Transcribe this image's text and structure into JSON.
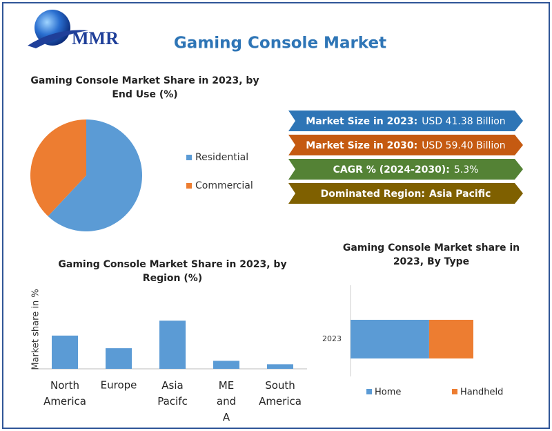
{
  "header": {
    "title": "Gaming Console Market",
    "logo": "MMR"
  },
  "highlights": [
    {
      "label": "Market Size in 2023:",
      "value": "USD 41.38 Billion",
      "color": "#2e75b6"
    },
    {
      "label": "Market Size in 2030:",
      "value": "USD 59.40 Billion",
      "color": "#c55a11"
    },
    {
      "label": "CAGR % (2024-2030):",
      "value": "5.3%",
      "color": "#548235"
    },
    {
      "label": "Dominated Region:",
      "value": "Asia Pacific",
      "color": "#7f6000",
      "bold": true
    }
  ],
  "chart_data": [
    {
      "type": "pie",
      "title": "Gaming Console Market Share in 2023, by End Use (%)",
      "categories": [
        "Residential",
        "Commercial"
      ],
      "values": [
        62,
        38
      ],
      "colors": [
        "#5b9bd5",
        "#ed7d31"
      ],
      "legend": "right"
    },
    {
      "type": "bar",
      "title": "Gaming Console Market Share in 2023, by Region (%)",
      "y_label": "Market share in %",
      "categories": [
        "North America",
        "Europe",
        "Asia Pacifc",
        "ME and A",
        "South America"
      ],
      "values": [
        29,
        18,
        42,
        7,
        4
      ],
      "color": "#5b9bd5",
      "ylim": [
        0,
        50
      ]
    },
    {
      "type": "stacked_hbar",
      "title": "Gaming Console Market share in 2023, By Type",
      "categories": [
        "2023"
      ],
      "series": [
        {
          "name": "Home",
          "color": "#5b9bd5",
          "values": [
            64
          ]
        },
        {
          "name": "Handheld",
          "color": "#ed7d31",
          "values": [
            36
          ]
        }
      ],
      "xlim": [
        0,
        100
      ],
      "legend": "bottom"
    }
  ]
}
